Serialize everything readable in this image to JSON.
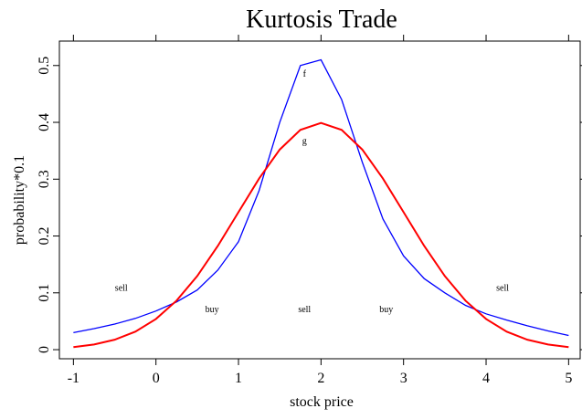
{
  "chart_data": {
    "type": "line",
    "title": "Kurtosis Trade",
    "x_label": "stock price",
    "y_label": "probability*0.1",
    "x": [
      -1,
      -0.75,
      -0.5,
      -0.25,
      0,
      0.25,
      0.5,
      0.75,
      1,
      1.25,
      1.5,
      1.75,
      2,
      2.25,
      2.5,
      2.75,
      3,
      3.25,
      3.5,
      3.75,
      4,
      4.25,
      4.5,
      4.75,
      5
    ],
    "series": [
      {
        "name": "f",
        "color": "#0000ff",
        "values": [
          0.03,
          0.037,
          0.045,
          0.055,
          0.068,
          0.084,
          0.105,
          0.14,
          0.19,
          0.28,
          0.4,
          0.5,
          0.51,
          0.44,
          0.33,
          0.23,
          0.165,
          0.125,
          0.1,
          0.078,
          0.063,
          0.052,
          0.042,
          0.033,
          0.025
        ]
      },
      {
        "name": "g",
        "color": "#ff0000",
        "values": [
          0.0044,
          0.0091,
          0.0175,
          0.0317,
          0.054,
          0.0863,
          0.1295,
          0.1826,
          0.242,
          0.3011,
          0.3521,
          0.3867,
          0.3989,
          0.3867,
          0.3521,
          0.3011,
          0.242,
          0.1826,
          0.1295,
          0.0863,
          0.054,
          0.0317,
          0.0175,
          0.0091,
          0.0044
        ]
      }
    ],
    "annotations": [
      {
        "text": "f",
        "x": 1.8,
        "y": 0.48
      },
      {
        "text": "g",
        "x": 1.8,
        "y": 0.362
      },
      {
        "text": "sell",
        "x": -0.42,
        "y": 0.104
      },
      {
        "text": "buy",
        "x": 0.68,
        "y": 0.066
      },
      {
        "text": "sell",
        "x": 1.8,
        "y": 0.066
      },
      {
        "text": "buy",
        "x": 2.79,
        "y": 0.066
      },
      {
        "text": "sell",
        "x": 4.2,
        "y": 0.104
      }
    ],
    "xlim": [
      -1.17,
      5.14
    ],
    "ylim": [
      -0.016,
      0.543
    ],
    "xticks": [
      -1,
      0,
      1,
      2,
      3,
      4,
      5
    ],
    "yticks": [
      0,
      0.1,
      0.2,
      0.3,
      0.4,
      0.5
    ]
  }
}
